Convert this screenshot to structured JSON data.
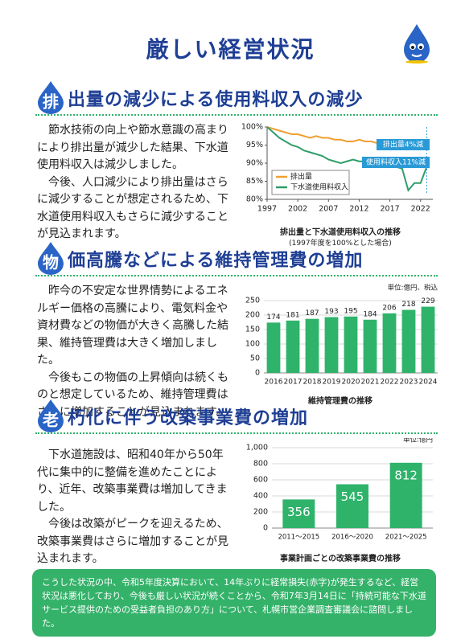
{
  "header": {
    "title": "厳しい経営状況"
  },
  "sections": [
    {
      "icon": "排",
      "title": "出量の減少による使用料収入の減少",
      "paragraphs": [
        "節水技術の向上や節水意識の高まりにより排出量が減少した結果、下水道使用料収入は減少しました。",
        "今後、人口減少により排出量はさらに減少することが想定されるため、下水道使用料収入もさらに減少することが見込まれます。"
      ]
    },
    {
      "icon": "物",
      "title": "価高騰などによる維持管理費の増加",
      "paragraphs": [
        "昨今の不安定な世界情勢によるエネルギー価格の高騰により、電気料金や資材費などの物価が大きく高騰した結果、維持管理費は大きく増加しました。",
        "今後もこの物価の上昇傾向は続くものと想定しているため、維持管理費はさらに増加することが見込まれます。"
      ]
    },
    {
      "icon": "老",
      "title": "朽化に伴う改築事業費の増加",
      "paragraphs": [
        "下水道施設は、昭和40年から50年代に集中的に整備を進めたことにより、近年、改築事業費は増加してきました。",
        "今後は改築がピークを迎えるため、改築事業費はさらに増加することが見込まれます。"
      ]
    }
  ],
  "chart_data": [
    {
      "type": "line",
      "title": "排出量と下水道使用料収入の推移",
      "subtitle": "(1997年度を100%とした場合)",
      "x": [
        1997,
        1998,
        1999,
        2000,
        2001,
        2002,
        2003,
        2004,
        2005,
        2006,
        2007,
        2008,
        2009,
        2010,
        2011,
        2012,
        2013,
        2014,
        2015,
        2016,
        2017,
        2018,
        2019,
        2020,
        2021,
        2022,
        2023
      ],
      "series": [
        {
          "name": "排出量",
          "color": "#f0a030",
          "values": [
            100,
            99.5,
            99,
            98.5,
            98,
            98,
            97.5,
            97,
            97.5,
            97,
            97,
            96.5,
            96.5,
            96,
            96,
            96.5,
            96,
            96,
            95.5,
            96,
            96,
            95.5,
            95,
            95.5,
            95,
            94.5,
            96
          ]
        },
        {
          "name": "下水道使用料収入",
          "color": "#2e9e6a",
          "values": [
            100,
            98.5,
            97,
            96,
            95,
            94.5,
            93.5,
            93,
            92.5,
            92,
            91,
            90.5,
            90,
            90.5,
            91,
            90.5,
            90.5,
            90,
            90,
            90,
            89.5,
            89,
            88.5,
            82.5,
            84.5,
            84.5,
            89
          ]
        }
      ],
      "xlim": [
        1997,
        2024
      ],
      "xticks": [
        1997,
        2002,
        2007,
        2012,
        2017,
        2022
      ],
      "ylim": [
        80,
        100
      ],
      "yticks": [
        {
          "value": 80,
          "label": "80%"
        },
        {
          "value": 85,
          "label": "85%"
        },
        {
          "value": 90,
          "label": "90%"
        },
        {
          "value": 95,
          "label": "95%"
        },
        {
          "value": 100,
          "label": "100%"
        }
      ],
      "grid": false,
      "legend": "lower left",
      "annotations": [
        "排出量4%減",
        "使用料収入11%減"
      ]
    },
    {
      "type": "bar",
      "title": "維持管理費の推移",
      "unit": "単位:億円、税込",
      "categories": [
        "2016",
        "2017",
        "2018",
        "2019",
        "2020",
        "2021",
        "2022",
        "2023",
        "2024"
      ],
      "values": [
        174,
        181,
        187,
        193,
        195,
        184,
        206,
        218,
        229
      ],
      "color": "#2fb36b",
      "ylim": [
        0,
        250
      ],
      "yticks": [
        0,
        50,
        100,
        150,
        200,
        250
      ],
      "grid": true,
      "value_label_position": "outside"
    },
    {
      "type": "bar",
      "title": "事業計画ごとの改築事業費の推移",
      "unit": "単位:億円",
      "categories": [
        "2011～2015",
        "2016～2020",
        "2021～2025"
      ],
      "values": [
        356,
        545,
        812
      ],
      "color": "#2fb36b",
      "ylim": [
        0,
        1000
      ],
      "yticks": [
        0,
        200,
        400,
        600,
        800,
        {
          "value": 1000,
          "label": "1,000"
        }
      ],
      "grid": true,
      "value_label_position": "inside"
    }
  ],
  "footer": {
    "text": "こうした状況の中、令和5年度決算において、14年ぶりに経常損失(赤字)が発生するなど、経営状況は悪化しており、今後も厳しい状況が続くことから、令和7年3月14日に「持続可能な下水道サービス提供のための受益者負担のあり方」について、札幌市営企業調査審議会に諮問しました。"
  }
}
